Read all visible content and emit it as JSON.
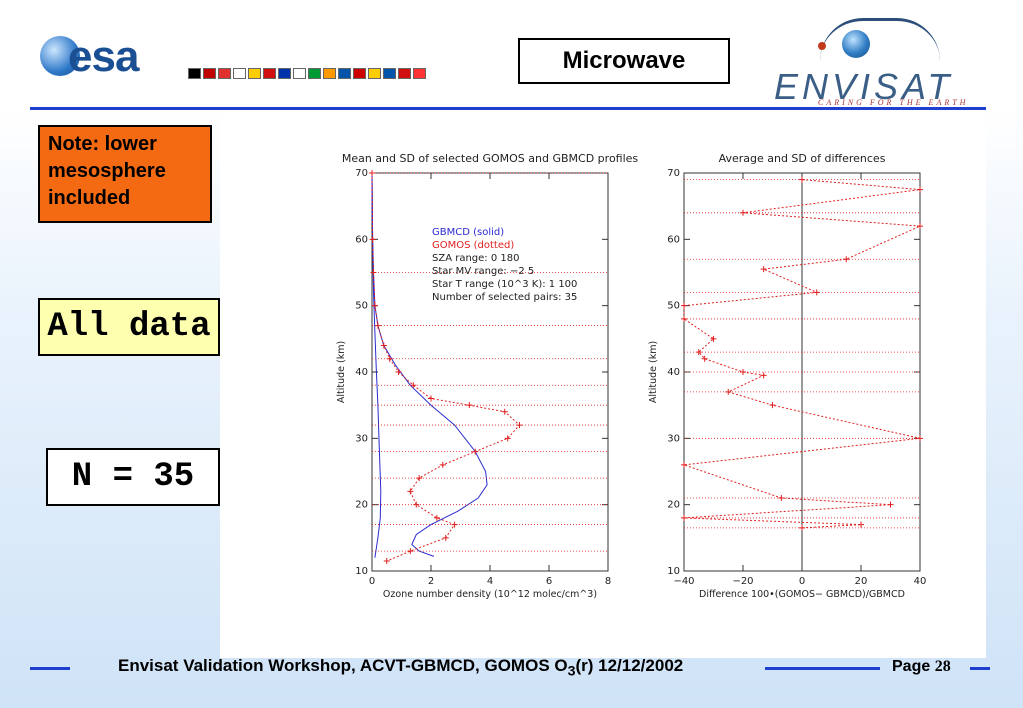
{
  "header": {
    "esa_logo_text": "esa",
    "title": "Microwave",
    "envisat_logo_text": "ENVISAT",
    "envisat_tagline": "CARING FOR THE EARTH",
    "flag_colors": [
      "#000000",
      "#c00000",
      "#e03030",
      "#ffffff",
      "#ffcc00",
      "#d01010",
      "#0033aa",
      "#ffffff",
      "#009933",
      "#ff9900",
      "#0055aa",
      "#cc0000",
      "#ffcc00",
      "#0055aa",
      "#d01010",
      "#ff3333"
    ]
  },
  "notes": {
    "note_lines": [
      "Note: lower",
      "mesosphere",
      "included"
    ],
    "all_data": "All data",
    "n_label": "N = 35"
  },
  "footer": {
    "text_main": "Envisat Validation Workshop, ACVT-GBMCD,  GOMOS O",
    "text_sub": "3",
    "text_tail": "(r) 12/12/2002",
    "page_label": "Page",
    "page_number": "28"
  },
  "colors": {
    "accent": "#1f3fd0",
    "gbmcd": "#2a2ad0",
    "gomos": "#e02020",
    "note_bg": "#f46a12",
    "alldata_bg": "#ffffb0"
  },
  "chart_data": [
    {
      "type": "line",
      "title": "Mean and SD of selected GOMOS and GBMCD profiles",
      "xlabel": "Ozone number density (10^12 molec/cm^3)",
      "ylabel": "Altitude (km)",
      "xlim": [
        0,
        8
      ],
      "ylim": [
        10,
        70
      ],
      "xticks": [
        "0",
        "2",
        "4",
        "6",
        "8"
      ],
      "yticks": [
        "10",
        "20",
        "30",
        "40",
        "50",
        "60",
        "70"
      ],
      "legend": {
        "position": "top-right",
        "lines": [
          "GBMCD   (solid)",
          "GOMOS   (dotted)",
          "SZA range:       0    180",
          "Star MV range:    −2    5",
          "Star T range (10^3 K):   1  100",
          "Number of selected pairs:   35"
        ]
      },
      "series": [
        {
          "name": "GBMCD",
          "style": "solid",
          "x": [
            0,
            0.02,
            0.05,
            0.1,
            0.2,
            0.4,
            0.8,
            1.3,
            2.0,
            2.8,
            3.5,
            3.85,
            3.9,
            3.6,
            2.9,
            2.0,
            1.5,
            1.35,
            1.6,
            2.1
          ],
          "y": [
            70,
            60,
            55,
            50,
            47,
            44,
            41,
            38,
            35,
            32,
            28,
            25,
            23,
            21,
            19,
            17,
            15.5,
            14,
            13,
            12.2
          ]
        },
        {
          "name": "GBMCD",
          "style": "solid",
          "x": [
            0,
            0.02,
            0.05,
            0.1,
            0.15,
            0.2,
            0.25,
            0.3,
            0.28,
            0.2,
            0.1
          ],
          "y": [
            70,
            60,
            52,
            46,
            40,
            35,
            28,
            22,
            18,
            15,
            12
          ]
        },
        {
          "name": "GOMOS",
          "style": "dotted",
          "x": [
            0,
            0.02,
            0.05,
            0.1,
            0.2,
            0.4,
            0.6,
            0.9,
            1.4,
            2.0,
            3.3,
            4.5,
            5.0,
            4.6,
            3.5,
            2.4,
            1.6,
            1.3,
            1.5,
            2.2,
            2.8,
            2.5,
            1.3,
            0.5
          ],
          "y": [
            70,
            60,
            55,
            50,
            47,
            44,
            42,
            40,
            38,
            36,
            35,
            34,
            32,
            30,
            28,
            26,
            24,
            22,
            20,
            18,
            17,
            15,
            13,
            11.5
          ]
        }
      ]
    },
    {
      "type": "line",
      "title": "Average and SD of differences",
      "xlabel": "Difference 100•(GOMOS− GBMCD)/GBMCD",
      "ylabel": "Altitude (km)",
      "xlim": [
        -40,
        40
      ],
      "ylim": [
        10,
        70
      ],
      "xticks": [
        "−40",
        "−20",
        "0",
        "20",
        "40"
      ],
      "yticks": [
        "10",
        "20",
        "30",
        "40",
        "50",
        "60",
        "70"
      ],
      "series": [
        {
          "name": "mean difference",
          "style": "dotted",
          "x": [
            0,
            40,
            -20,
            40,
            15,
            -13,
            5,
            -40,
            -40,
            -30,
            -35,
            -33,
            -20,
            -13,
            -25,
            -10,
            40,
            -40,
            -7,
            30,
            -40,
            20,
            0
          ],
          "y": [
            69,
            67.5,
            64,
            62,
            57,
            55.5,
            52,
            50,
            48,
            45,
            43,
            42,
            40,
            39.5,
            37,
            35,
            30,
            26,
            21,
            20,
            18,
            17,
            16.5
          ]
        }
      ]
    }
  ]
}
